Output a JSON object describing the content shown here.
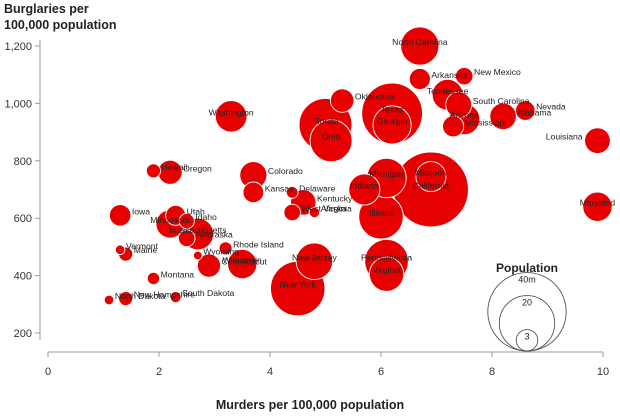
{
  "chart_data": {
    "type": "scatter",
    "title": "",
    "ylabel_lines": [
      "Burglaries per",
      "100,000 population"
    ],
    "xlabel": "Murders per 100,000 population",
    "xlim": [
      0,
      10
    ],
    "ylim": [
      200,
      1200
    ],
    "xticks": [
      "0",
      "2",
      "4",
      "6",
      "8",
      "10"
    ],
    "yticks": [
      "200",
      "400",
      "600",
      "800",
      "1,000",
      "1,200"
    ],
    "size_legend": {
      "title": "Population",
      "items": [
        {
          "label": "40m",
          "value": 40
        },
        {
          "label": "20",
          "value": 20
        },
        {
          "label": "3",
          "value": 3
        }
      ]
    },
    "colors": {
      "bubble": "#e60000",
      "bubble_outline": "#ffffff",
      "axis": "#999999",
      "legend_outline": "#555555"
    },
    "points": [
      {
        "state": "North Carolina",
        "murders": 6.7,
        "burglaries": 1200,
        "population": 9.5
      },
      {
        "state": "Arkansas",
        "murders": 6.7,
        "burglaries": 1085,
        "population": 2.9
      },
      {
        "state": "New Mexico",
        "murders": 7.5,
        "burglaries": 1095,
        "population": 2.0
      },
      {
        "state": "Tennessee",
        "murders": 7.2,
        "burglaries": 1030,
        "population": 6.2
      },
      {
        "state": "Oklahoma",
        "murders": 5.3,
        "burglaries": 1010,
        "population": 3.6
      },
      {
        "state": "South Carolina",
        "murders": 7.4,
        "burglaries": 995,
        "population": 4.4
      },
      {
        "state": "Nevada",
        "murders": 8.6,
        "burglaries": 975,
        "population": 2.5
      },
      {
        "state": "Texas",
        "murders": 6.2,
        "burglaries": 965,
        "population": 24.0
      },
      {
        "state": "Alabama",
        "murders": 8.2,
        "burglaries": 955,
        "population": 4.6
      },
      {
        "state": "Washington",
        "murders": 3.3,
        "burglaries": 955,
        "population": 6.5
      },
      {
        "state": "Florida",
        "murders": 5.0,
        "burglaries": 925,
        "population": 18.2
      },
      {
        "state": "Arizona",
        "murders": 7.5,
        "burglaries": 945,
        "population": 6.3
      },
      {
        "state": "Mississippi",
        "murders": 7.3,
        "burglaries": 920,
        "population": 2.9
      },
      {
        "state": "Georgia",
        "murders": 6.2,
        "burglaries": 925,
        "population": 9.5
      },
      {
        "state": "Ohio",
        "murders": 5.1,
        "burglaries": 870,
        "population": 11.5
      },
      {
        "state": "Louisiana",
        "murders": 9.9,
        "burglaries": 870,
        "population": 4.3
      },
      {
        "state": "Hawaii",
        "murders": 1.9,
        "burglaries": 765,
        "population": 1.3
      },
      {
        "state": "Oregon",
        "murders": 2.2,
        "burglaries": 760,
        "population": 3.8
      },
      {
        "state": "Colorado",
        "murders": 3.7,
        "burglaries": 750,
        "population": 4.8
      },
      {
        "state": "Missouri",
        "murders": 6.9,
        "burglaries": 745,
        "population": 5.9
      },
      {
        "state": "Michigan",
        "murders": 6.1,
        "burglaries": 740,
        "population": 10.1
      },
      {
        "state": "Indiana",
        "murders": 5.7,
        "burglaries": 700,
        "population": 6.3
      },
      {
        "state": "California",
        "murders": 6.9,
        "burglaries": 700,
        "population": 36.5
      },
      {
        "state": "Kansas",
        "murders": 3.7,
        "burglaries": 690,
        "population": 2.8
      },
      {
        "state": "Delaware",
        "murders": 4.4,
        "burglaries": 690,
        "population": 0.9
      },
      {
        "state": "Kentucky",
        "murders": 4.6,
        "burglaries": 655,
        "population": 4.2
      },
      {
        "state": "Maryland",
        "murders": 9.9,
        "burglaries": 640,
        "population": 5.6
      },
      {
        "state": "Iowa",
        "murders": 1.3,
        "burglaries": 610,
        "population": 3.0
      },
      {
        "state": "Utah",
        "murders": 2.3,
        "burglaries": 610,
        "population": 2.6
      },
      {
        "state": "West Virginia",
        "murders": 4.4,
        "burglaries": 620,
        "population": 1.8
      },
      {
        "state": "Alaska",
        "murders": 4.8,
        "burglaries": 620,
        "population": 0.7
      },
      {
        "state": "Idaho",
        "murders": 2.5,
        "burglaries": 590,
        "population": 1.5
      },
      {
        "state": "Illinois",
        "murders": 6.0,
        "burglaries": 605,
        "population": 12.9
      },
      {
        "state": "Minnesota",
        "murders": 2.2,
        "burglaries": 580,
        "population": 5.2
      },
      {
        "state": "Massachusetts",
        "murders": 2.7,
        "burglaries": 545,
        "population": 6.5
      },
      {
        "state": "Nebraska",
        "murders": 2.5,
        "burglaries": 530,
        "population": 1.8
      },
      {
        "state": "Rhode Island",
        "murders": 3.2,
        "burglaries": 495,
        "population": 1.1
      },
      {
        "state": "Vermont",
        "murders": 1.3,
        "burglaries": 490,
        "population": 0.6
      },
      {
        "state": "Maine",
        "murders": 1.4,
        "burglaries": 475,
        "population": 1.3
      },
      {
        "state": "Wyoming",
        "murders": 2.7,
        "burglaries": 470,
        "population": 0.5
      },
      {
        "state": "Pennsylvania",
        "murders": 6.1,
        "burglaries": 450,
        "population": 12.4
      },
      {
        "state": "New Jersey",
        "murders": 4.8,
        "burglaries": 450,
        "population": 8.7
      },
      {
        "state": "Wisconsin",
        "murders": 3.5,
        "burglaries": 440,
        "population": 5.6
      },
      {
        "state": "Connecticut",
        "murders": 2.9,
        "burglaries": 435,
        "population": 3.5
      },
      {
        "state": "Virginia",
        "murders": 6.1,
        "burglaries": 405,
        "population": 7.7
      },
      {
        "state": "Montana",
        "murders": 1.9,
        "burglaries": 390,
        "population": 1.0
      },
      {
        "state": "New York",
        "murders": 4.5,
        "burglaries": 355,
        "population": 19.3
      },
      {
        "state": "South Dakota",
        "murders": 2.3,
        "burglaries": 325,
        "population": 0.8
      },
      {
        "state": "North Dakota",
        "murders": 1.1,
        "burglaries": 315,
        "population": 0.6
      },
      {
        "state": "New Hampshire",
        "murders": 1.4,
        "burglaries": 320,
        "population": 1.3
      }
    ]
  }
}
